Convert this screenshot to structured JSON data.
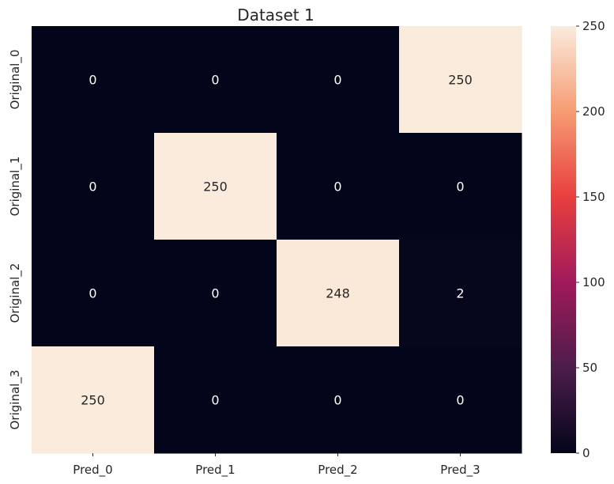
{
  "chart_data": {
    "type": "heatmap",
    "title": "Dataset 1",
    "xlabel": "",
    "ylabel": "",
    "x_categories": [
      "Pred_0",
      "Pred_1",
      "Pred_2",
      "Pred_3"
    ],
    "y_categories": [
      "Original_0",
      "Original_1",
      "Original_2",
      "Original_3"
    ],
    "values": [
      [
        0,
        0,
        0,
        250
      ],
      [
        0,
        250,
        0,
        0
      ],
      [
        0,
        0,
        248,
        2
      ],
      [
        250,
        0,
        0,
        0
      ]
    ],
    "colorbar": {
      "range": [
        0,
        250
      ],
      "ticks": [
        0,
        50,
        100,
        150,
        200,
        250
      ],
      "colormap": "rocket",
      "colors": [
        "#03051a",
        "#4c1d4b",
        "#a11a5b",
        "#e83f3f",
        "#f69c73",
        "#faebdd"
      ]
    },
    "grid": false,
    "legend": "right"
  }
}
